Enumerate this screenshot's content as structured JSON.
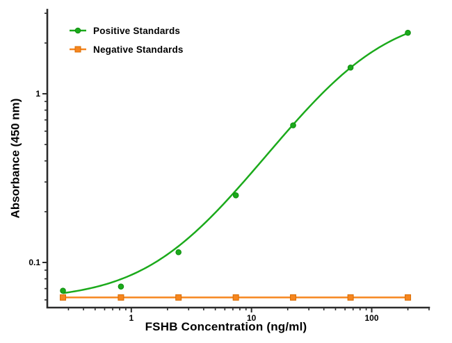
{
  "chart_data": {
    "type": "line",
    "x_scale": "log",
    "y_scale": "log",
    "title": "",
    "xlabel": "FSHB Concentration (ng/ml)",
    "ylabel": "Absorbance (450 nm)",
    "x_range": [
      0.2,
      300
    ],
    "y_range": [
      0.054,
      3.15
    ],
    "x_major_ticks": [
      {
        "value": 1,
        "label": "1"
      },
      {
        "value": 10,
        "label": "10"
      },
      {
        "value": 100,
        "label": "100"
      }
    ],
    "y_major_ticks": [
      {
        "value": 0.1,
        "label": "0.1"
      },
      {
        "value": 1,
        "label": "1"
      }
    ],
    "grid": false,
    "legend_position": "top-left",
    "axis_color": "#2b2b2b",
    "series": [
      {
        "name": "Positive Standards",
        "marker": "circle",
        "color": "#1baa1b",
        "marker_stroke": "#0e8c0e",
        "x": [
          0.27,
          0.82,
          2.47,
          7.41,
          22.2,
          66.7,
          200
        ],
        "y": [
          0.068,
          0.072,
          0.115,
          0.25,
          0.65,
          1.43,
          2.3
        ],
        "fit": {
          "type": "4PL",
          "bottom": 0.06,
          "top": 3.1,
          "ec50": 80,
          "hill": 1.1
        }
      },
      {
        "name": "Negative Standards",
        "marker": "square",
        "color": "#f6861f",
        "marker_stroke": "#d96c00",
        "x": [
          0.27,
          0.82,
          2.47,
          7.41,
          22.2,
          66.7,
          200
        ],
        "y": [
          0.062,
          0.062,
          0.062,
          0.062,
          0.062,
          0.062,
          0.062
        ],
        "fit": {
          "type": "flat"
        }
      }
    ]
  }
}
